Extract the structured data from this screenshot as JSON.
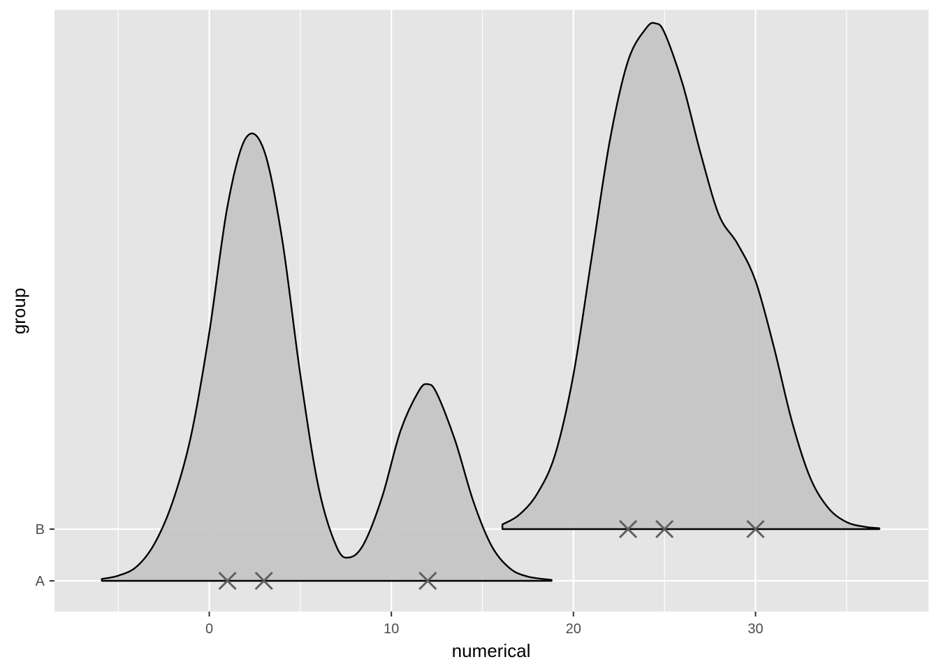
{
  "chart_data": {
    "type": "ridgeline-density",
    "title": "",
    "xlabel": "numerical",
    "ylabel": "group",
    "xlim": [
      -8.5,
      39.5
    ],
    "xticks": [
      0,
      10,
      20,
      30
    ],
    "x_minor_ticks": [
      -5,
      5,
      15,
      25,
      35
    ],
    "groups": [
      "A",
      "B"
    ],
    "grid": true,
    "colors": {
      "panel_background": "#e5e5e5",
      "grid_line": "#ffffff",
      "density_fill": "#c4c4c4",
      "density_outline": "#000000",
      "point_marker": "#5f5f5f"
    },
    "series": [
      {
        "name": "A",
        "points": [
          1,
          3,
          12
        ],
        "density_range": [
          -5.9,
          18.8
        ],
        "density_x": [
          -5.9,
          -5.0,
          -4.0,
          -3.0,
          -2.0,
          -1.0,
          0.0,
          1.0,
          2.0,
          3.0,
          4.0,
          5.0,
          6.0,
          7.0,
          7.7,
          8.5,
          9.5,
          10.5,
          11.5,
          12.0,
          12.5,
          13.5,
          14.5,
          15.5,
          16.5,
          17.5,
          18.8
        ],
        "density_y": [
          0.004,
          0.011,
          0.03,
          0.08,
          0.17,
          0.31,
          0.53,
          0.8,
          0.945,
          0.92,
          0.73,
          0.44,
          0.2,
          0.072,
          0.05,
          0.08,
          0.18,
          0.32,
          0.405,
          0.42,
          0.4,
          0.3,
          0.17,
          0.075,
          0.027,
          0.009,
          0.002
        ]
      },
      {
        "name": "B",
        "points": [
          23,
          25,
          30
        ],
        "density_range": [
          16.1,
          36.8
        ],
        "density_x": [
          16.1,
          17.0,
          18.0,
          19.0,
          20.0,
          21.0,
          22.0,
          23.0,
          24.0,
          24.5,
          25.0,
          26.0,
          27.0,
          28.0,
          29.0,
          30.0,
          31.0,
          32.0,
          33.0,
          34.0,
          35.0,
          36.0,
          36.8
        ],
        "density_y": [
          0.01,
          0.03,
          0.075,
          0.16,
          0.33,
          0.58,
          0.83,
          1.0,
          1.07,
          1.08,
          1.06,
          0.95,
          0.8,
          0.67,
          0.61,
          0.53,
          0.39,
          0.23,
          0.11,
          0.045,
          0.015,
          0.005,
          0.002
        ]
      }
    ]
  }
}
